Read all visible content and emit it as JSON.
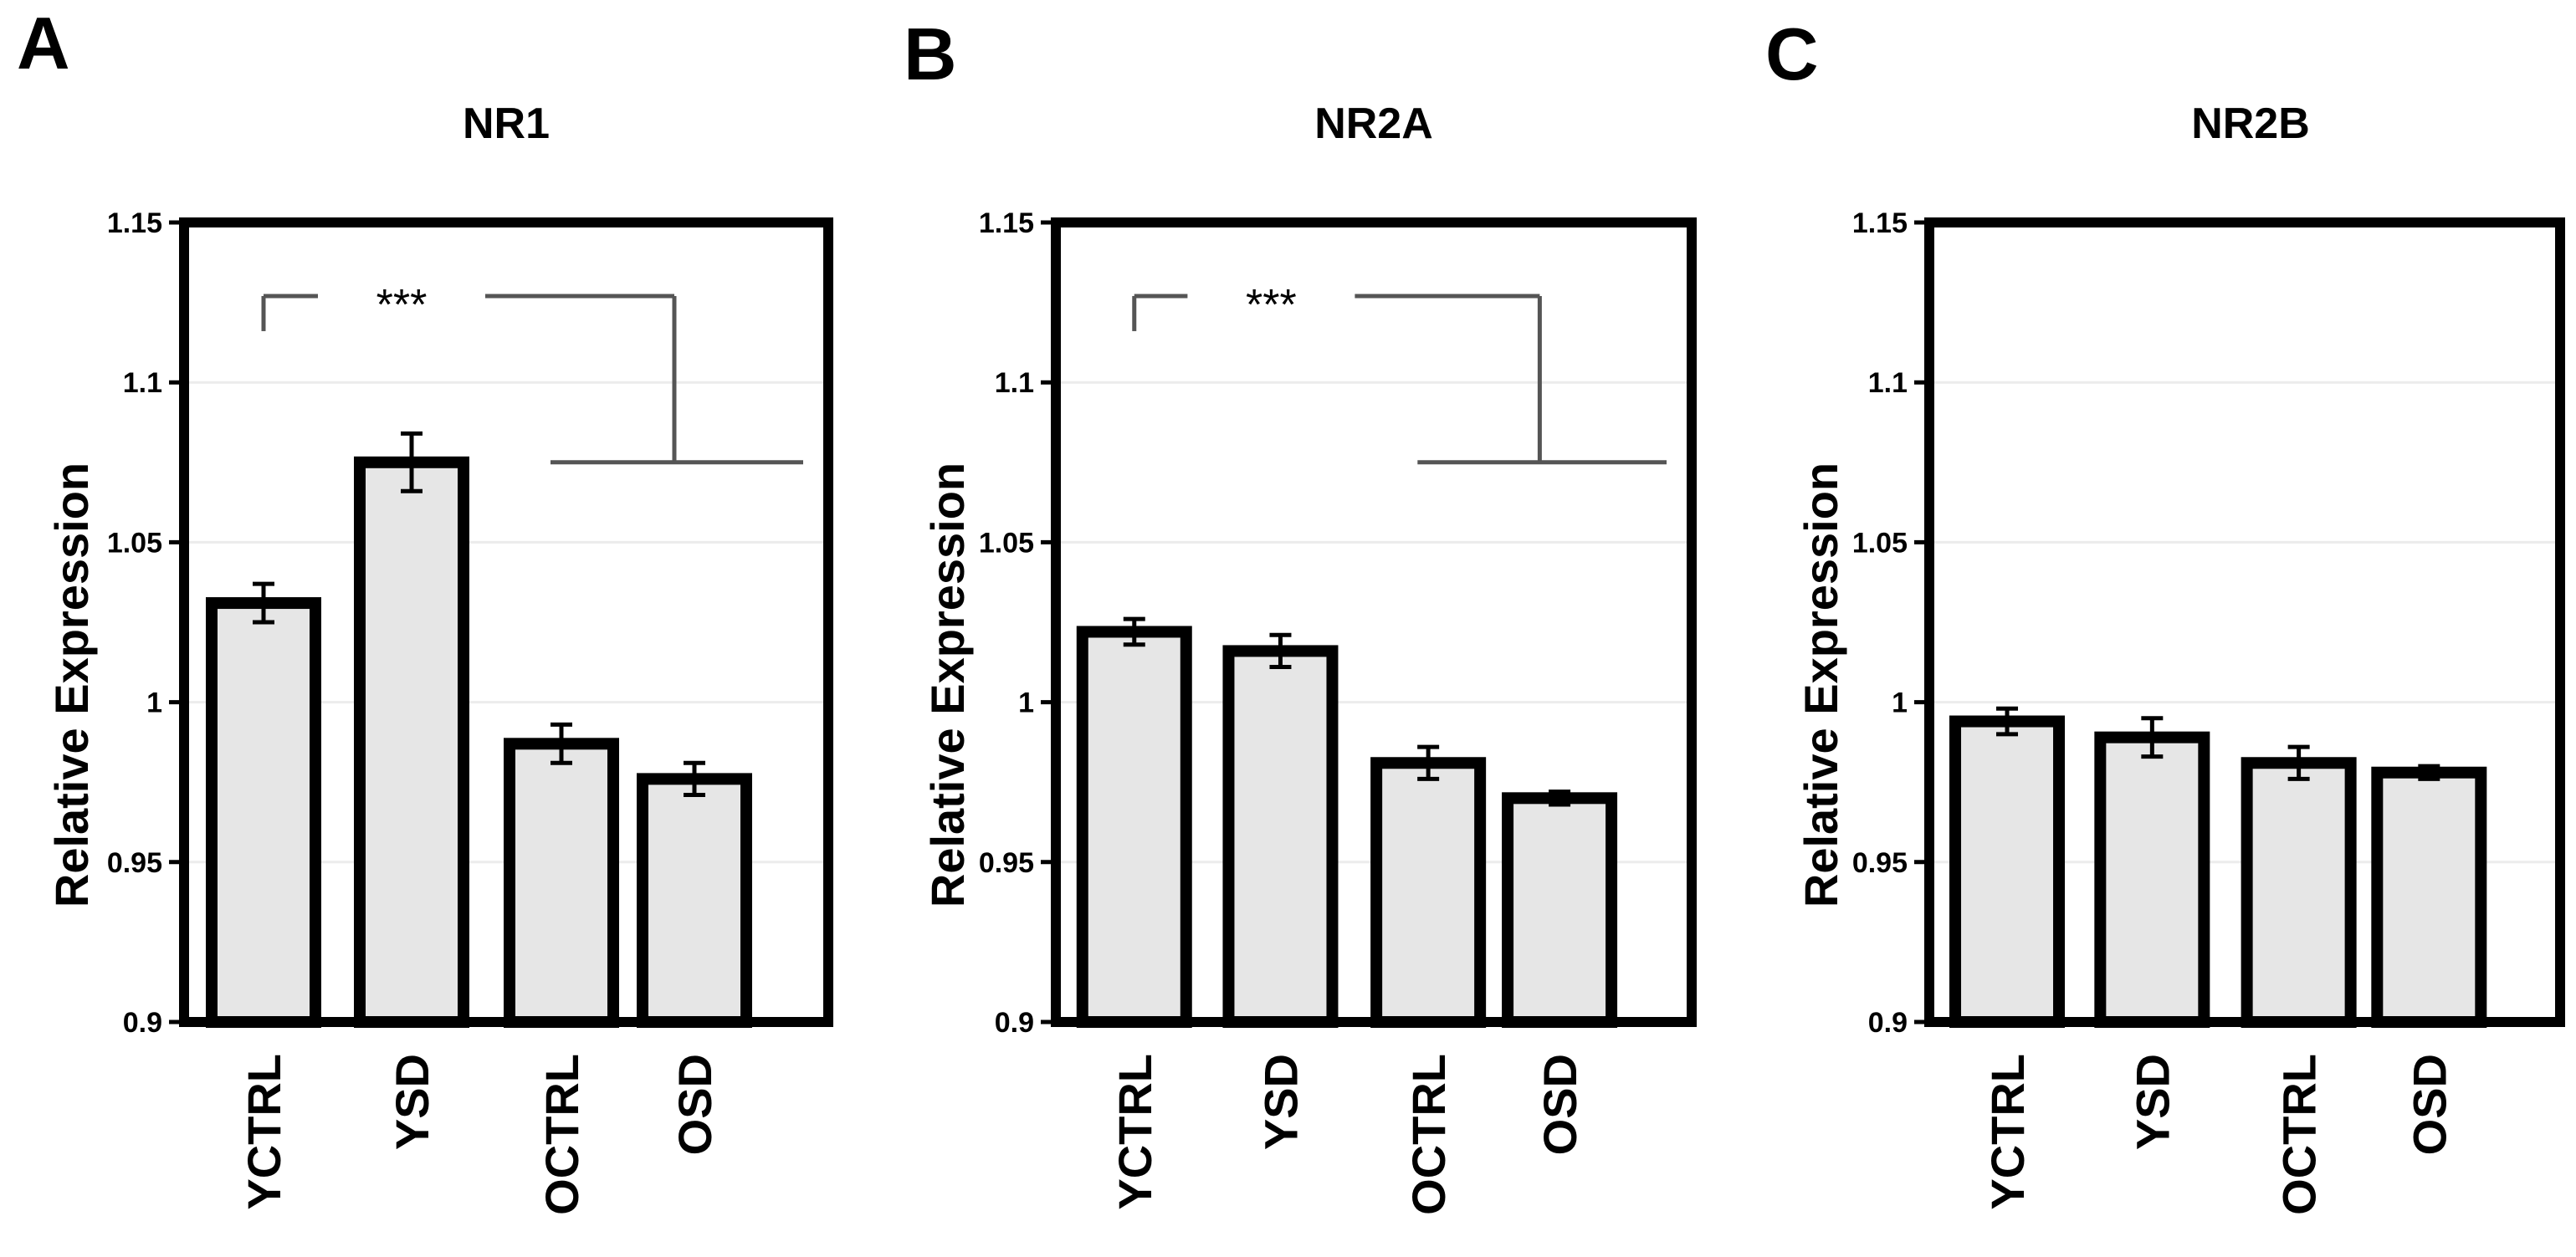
{
  "figure": {
    "panel_letters": [
      "A",
      "B",
      "C"
    ]
  },
  "colors": {
    "bar_fill": "#e6e6e6",
    "bar_stroke": "#000000",
    "frame": "#000000",
    "bracket": "#555555",
    "grid": "#ececec"
  },
  "chart_data": [
    {
      "type": "bar",
      "title": "NR1",
      "xlabel": "",
      "ylabel": "Relative Expression",
      "categories": [
        "YCTRL",
        "YSD",
        "OCTRL",
        "OSD"
      ],
      "values": [
        1.031,
        1.075,
        0.987,
        0.976
      ],
      "errors": [
        0.006,
        0.009,
        0.006,
        0.005
      ],
      "ylim": [
        0.9,
        1.15
      ],
      "yticks": [
        0.9,
        0.95,
        1.0,
        1.05,
        1.1,
        1.15
      ],
      "ytick_labels": [
        "0.9",
        "0.95",
        "1",
        "1.05",
        "1.1",
        "1.15"
      ],
      "grid": true,
      "significance": {
        "label": "***",
        "from": [
          "YCTRL",
          "YSD"
        ],
        "to": [
          "OCTRL",
          "OSD"
        ],
        "bracket_y": 1.127,
        "group_line_y": 1.075
      }
    },
    {
      "type": "bar",
      "title": "NR2A",
      "xlabel": "",
      "ylabel": "Relative Expression",
      "categories": [
        "YCTRL",
        "YSD",
        "OCTRL",
        "OSD"
      ],
      "values": [
        1.022,
        1.016,
        0.981,
        0.97
      ],
      "errors": [
        0.004,
        0.005,
        0.005,
        0.002
      ],
      "ylim": [
        0.9,
        1.15
      ],
      "yticks": [
        0.9,
        0.95,
        1.0,
        1.05,
        1.1,
        1.15
      ],
      "ytick_labels": [
        "0.9",
        "0.95",
        "1",
        "1.05",
        "1.1",
        "1.15"
      ],
      "grid": true,
      "significance": {
        "label": "***",
        "from": [
          "YCTRL",
          "YSD"
        ],
        "to": [
          "OCTRL",
          "OSD"
        ],
        "bracket_y": 1.127,
        "group_line_y": 1.075
      }
    },
    {
      "type": "bar",
      "title": "NR2B",
      "xlabel": "",
      "ylabel": "Relative Expression",
      "categories": [
        "YCTRL",
        "YSD",
        "OCTRL",
        "OSD"
      ],
      "values": [
        0.994,
        0.989,
        0.981,
        0.978
      ],
      "errors": [
        0.004,
        0.006,
        0.005,
        0.002
      ],
      "ylim": [
        0.9,
        1.15
      ],
      "yticks": [
        0.9,
        0.95,
        1.0,
        1.05,
        1.1,
        1.15
      ],
      "ytick_labels": [
        "0.9",
        "0.95",
        "1",
        "1.05",
        "1.1",
        "1.15"
      ],
      "grid": true,
      "significance": null
    }
  ]
}
